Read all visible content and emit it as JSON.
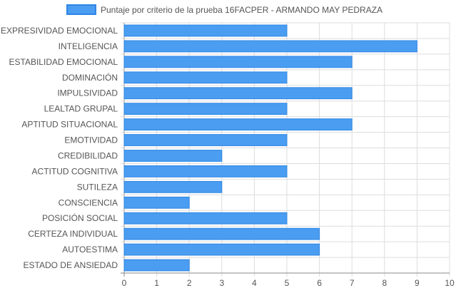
{
  "chart_data": {
    "type": "bar",
    "orientation": "horizontal",
    "categories": [
      "EXPRESIVIDAD EMOCIONAL",
      "INTELIGENCIA",
      "ESTABILIDAD EMOCIONAL",
      "DOMINACIÓN",
      "IMPULSIVIDAD",
      "LEALTAD GRUPAL",
      "APTITUD SITUACIONAL",
      "EMOTIVIDAD",
      "CREDIBILIDAD",
      "ACTITUD COGNITIVA",
      "SUTILEZA",
      "CONSCIENCIA",
      "POSICIÓN SOCIAL",
      "CERTEZA INDIVIDUAL",
      "AUTOESTIMA",
      "ESTADO DE ANSIEDAD"
    ],
    "series": [
      {
        "name": "Puntaje por criterio de la prueba 16FACPER - ARMANDO MAY PEDRAZA",
        "values": [
          5,
          9,
          7,
          5,
          7,
          5,
          7,
          5,
          3,
          5,
          3,
          2,
          5,
          6,
          6,
          2
        ]
      }
    ],
    "xlim": [
      0,
      10
    ],
    "x_ticks": [
      "0",
      "1",
      "2",
      "3",
      "4",
      "5",
      "6",
      "7",
      "8",
      "9",
      "10"
    ],
    "grid": true,
    "legend_position": "top",
    "colors": {
      "bar_fill": "#4a9df0",
      "bar_stroke": "#2f86e6",
      "grid": "#dddddd",
      "axis": "#888888"
    }
  }
}
